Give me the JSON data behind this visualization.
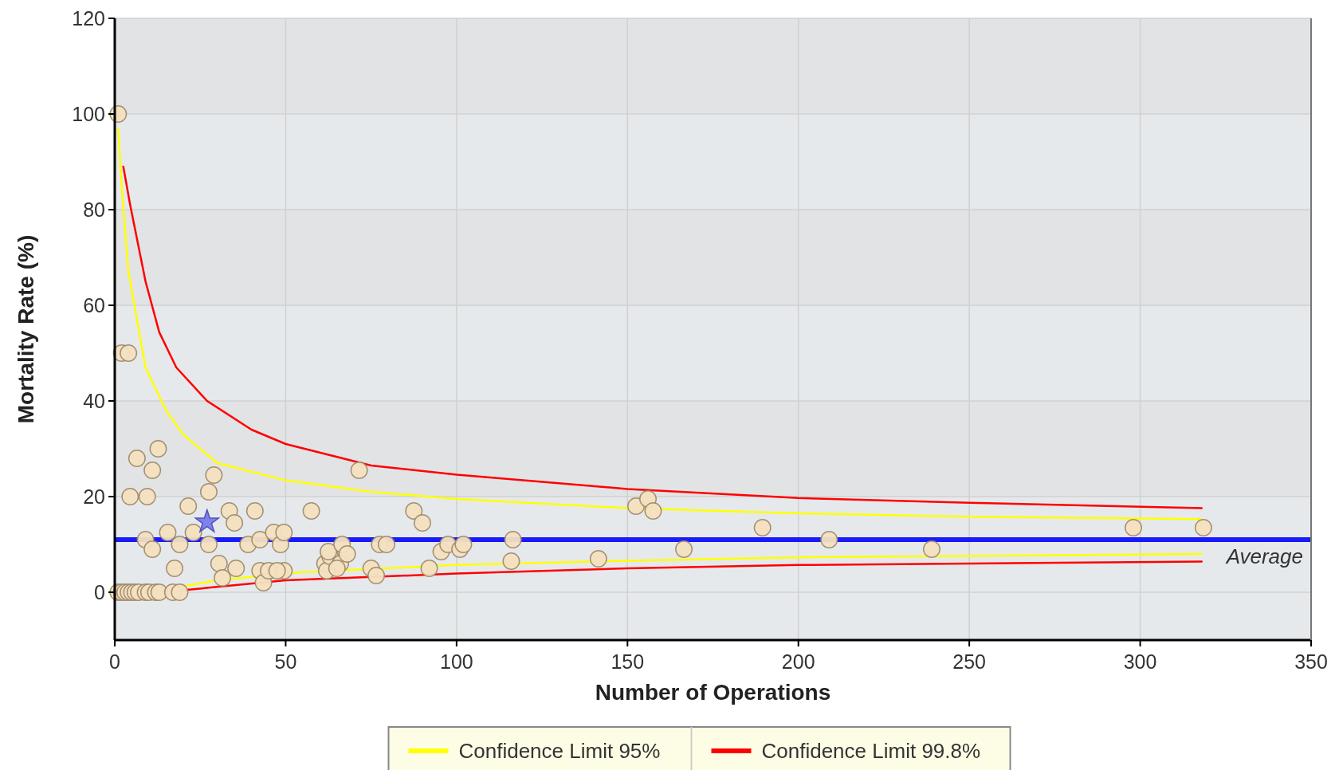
{
  "chart_data": {
    "type": "scatter",
    "xlabel": "Number of Operations",
    "ylabel": "Mortality Rate (%)",
    "xlim": [
      0,
      350
    ],
    "xticks": [
      0,
      50,
      100,
      150,
      200,
      250,
      300,
      350
    ],
    "ylim": [
      -10,
      120
    ],
    "yticks": [
      0,
      20,
      40,
      60,
      80,
      100,
      120
    ],
    "grid": true,
    "legend": "bottom",
    "ref_lines": [
      {
        "axis": "y",
        "value": 11,
        "label": "Average",
        "color": "#1a1aff"
      }
    ],
    "series": [
      {
        "color": "#f5e1c0",
        "marker": "circle",
        "x": [
          1,
          2,
          4,
          6.5,
          11,
          12.7,
          4.5,
          9.5,
          9,
          11,
          15.5,
          17.5,
          19,
          21.5,
          23,
          27.5,
          29,
          27.5,
          30.5,
          31.5,
          33.5,
          35,
          35.5,
          39,
          41,
          42.5,
          42.5,
          43.5,
          45,
          46.5,
          48.5,
          49.5,
          49.5,
          47.5,
          57.5,
          71.5,
          61.5,
          62,
          63,
          62.5,
          66.5,
          66,
          68,
          65,
          75,
          76.5,
          77.5,
          79.5,
          87.5,
          90,
          92,
          95.5,
          97.5,
          101,
          102,
          116,
          116.5,
          141.5,
          152.5,
          156,
          157.5,
          166.5,
          189.5,
          209,
          239,
          298,
          318.5,
          1,
          2,
          3,
          4,
          5,
          6,
          7,
          9,
          10,
          12,
          13,
          17,
          19
        ],
        "values": [
          100,
          50,
          50,
          28,
          25.5,
          30,
          20,
          20,
          11,
          9,
          12.5,
          5,
          10,
          18,
          12.5,
          21,
          24.5,
          10,
          6,
          3,
          17,
          14.5,
          5,
          10,
          17,
          11,
          4.5,
          2,
          4.5,
          12.5,
          10,
          12.5,
          4.5,
          4.5,
          17,
          25.5,
          6,
          4.5,
          7.5,
          8.5,
          10,
          6,
          8,
          5,
          5,
          3.5,
          10,
          10,
          17,
          14.5,
          5,
          8.5,
          10,
          9,
          10,
          6.5,
          11,
          7,
          18,
          19.5,
          17,
          9,
          13.5,
          11,
          9,
          13.5,
          13.5,
          0,
          0,
          0,
          0,
          0,
          0,
          0,
          0,
          0,
          0,
          0,
          0,
          0
        ]
      },
      {
        "color": "#7b7bea",
        "marker": "star",
        "x": [
          27
        ],
        "values": [
          14.7
        ]
      },
      {
        "type": "line",
        "name": "Confidence Limit 95%",
        "color": "#ffff00",
        "marker": "none",
        "x": [
          1,
          2,
          4,
          7,
          9,
          15,
          20,
          30,
          50,
          75,
          100,
          150,
          200,
          250,
          318
        ],
        "values": [
          97,
          85,
          67,
          55,
          47,
          38,
          33,
          27,
          23.4,
          21,
          19.5,
          17.6,
          16.5,
          15.8,
          15.3
        ]
      },
      {
        "type": "line",
        "color": "#ffff00",
        "marker": "none",
        "x": [
          20,
          30,
          55,
          100,
          150,
          200,
          250,
          318
        ],
        "values": [
          1.2,
          2.5,
          4.2,
          5.7,
          6.6,
          7.3,
          7.6,
          8
        ]
      },
      {
        "type": "line",
        "name": "Confidence Limit 99.8%",
        "color": "#ff0000",
        "marker": "none",
        "x": [
          2.5,
          4.5,
          9,
          13,
          18,
          27,
          40,
          50,
          75,
          100,
          150,
          200,
          250,
          318
        ],
        "values": [
          89,
          81,
          65,
          54.4,
          47,
          40,
          34,
          31,
          26.5,
          24.6,
          21.6,
          19.7,
          18.7,
          17.6
        ]
      },
      {
        "type": "line",
        "color": "#ff0000",
        "marker": "none",
        "x": [
          21,
          50,
          100,
          150,
          200,
          250,
          318
        ],
        "values": [
          0.5,
          2.5,
          3.9,
          5,
          5.7,
          6,
          6.4
        ]
      }
    ]
  }
}
